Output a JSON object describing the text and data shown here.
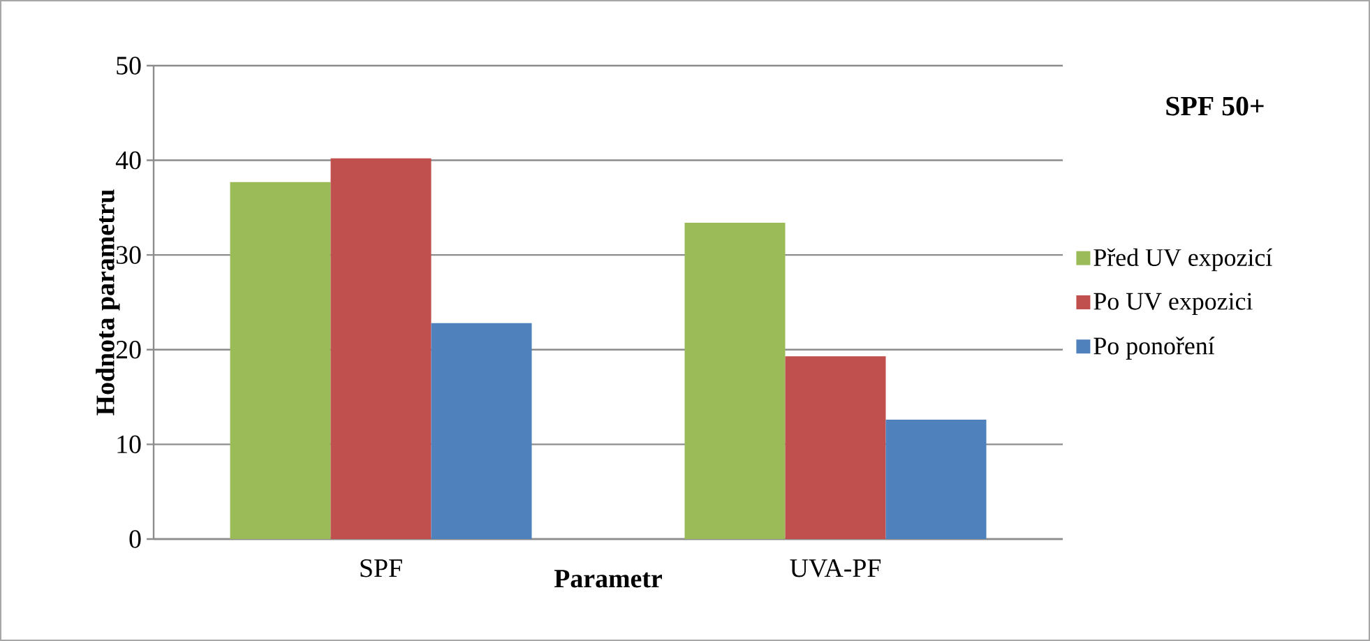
{
  "chart_data": {
    "type": "bar",
    "title": "SPF 50+",
    "xlabel": "Parametr",
    "ylabel": "Hodnota parametru",
    "categories": [
      "SPF",
      "UVA-PF"
    ],
    "series": [
      {
        "name": "Před UV expozicí",
        "color": "#9bbb59",
        "values": [
          37.7,
          33.4
        ]
      },
      {
        "name": "Po UV expozici",
        "color": "#c0504d",
        "values": [
          40.2,
          19.3
        ]
      },
      {
        "name": "Po ponoření",
        "color": "#4f81bd",
        "values": [
          22.8,
          12.6
        ]
      }
    ],
    "ylim": [
      0,
      50
    ],
    "yticks": [
      0,
      10,
      20,
      30,
      40,
      50
    ],
    "grid": "y",
    "legend": "right"
  }
}
